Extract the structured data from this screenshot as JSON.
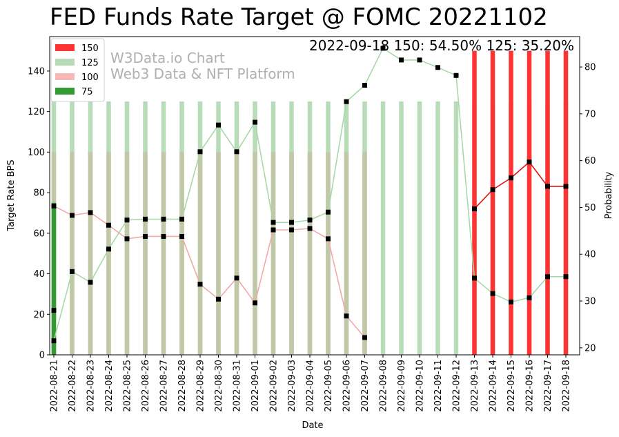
{
  "chart_data": {
    "type": "bar",
    "title": "FED Funds Rate Target @ FOMC 20221102",
    "annotation": "2022-09-18 150: 54.50% 125: 35.20%",
    "watermark": [
      "W3Data.io Chart",
      "Web3 Data & NFT Platform"
    ],
    "xlabel": "Date",
    "ylabel": "Target Rate BPS",
    "y2label": "Probability",
    "ylim": [
      0,
      157
    ],
    "y2lim": [
      18.5,
      86.5
    ],
    "yticks": [
      0,
      20,
      40,
      60,
      80,
      100,
      120,
      140
    ],
    "y2ticks": [
      20,
      30,
      40,
      50,
      60,
      70,
      80
    ],
    "categories": [
      "2022-08-21",
      "2022-08-22",
      "2022-08-23",
      "2022-08-24",
      "2022-08-25",
      "2022-08-26",
      "2022-08-27",
      "2022-08-28",
      "2022-08-29",
      "2022-08-30",
      "2022-08-31",
      "2022-09-01",
      "2022-09-02",
      "2022-09-03",
      "2022-09-04",
      "2022-09-05",
      "2022-09-06",
      "2022-09-07",
      "2022-09-08",
      "2022-09-09",
      "2022-09-10",
      "2022-09-11",
      "2022-09-12",
      "2022-09-13",
      "2022-09-14",
      "2022-09-15",
      "2022-09-16",
      "2022-09-17",
      "2022-09-18"
    ],
    "legend": [
      {
        "label": "150",
        "color": "#ff3333"
      },
      {
        "label": "125",
        "color": "#b8dcb8"
      },
      {
        "label": "100",
        "color": "#f8b8b8"
      },
      {
        "label": "75",
        "color": "#339933"
      }
    ],
    "bars": [
      {
        "name": "125",
        "value": 125,
        "color": "#b8dcb8",
        "from": 0,
        "to": 28
      },
      {
        "name": "100",
        "value": 100,
        "color": "#c0c8a8",
        "from": 0,
        "to": 17
      },
      {
        "name": "75",
        "value": 75,
        "color": "#339933",
        "from": 0,
        "to": 0
      },
      {
        "name": "150",
        "value": 150,
        "color": "#ff3333",
        "from": 23,
        "to": 28
      }
    ],
    "series": [
      {
        "name": "125",
        "color": "#a8d8a8",
        "values": [
          21.5,
          36.3,
          34.0,
          41.1,
          47.3,
          47.5,
          47.5,
          47.5,
          61.9,
          67.6,
          61.9,
          68.2,
          46.8,
          46.8,
          47.3,
          49.0,
          72.6,
          76.1,
          84.0,
          81.5,
          81.5,
          79.9,
          78.2,
          34.9,
          31.6,
          29.8,
          30.7,
          35.2,
          35.2
        ]
      },
      {
        "name": "100",
        "color": "#f4a8a8",
        "values": [
          50.3,
          48.3,
          48.9,
          46.2,
          43.3,
          43.8,
          43.8,
          43.8,
          33.6,
          30.4,
          34.9,
          29.6,
          45.2,
          45.2,
          45.5,
          43.3,
          26.8,
          22.2,
          null,
          null,
          null,
          null,
          null,
          null,
          null,
          null,
          null,
          null,
          null
        ]
      },
      {
        "name": "75",
        "color": "#339933",
        "values": [
          28.0,
          null,
          null,
          null,
          null,
          null,
          null,
          null,
          null,
          null,
          null,
          null,
          null,
          null,
          null,
          null,
          null,
          null,
          null,
          null,
          null,
          null,
          null,
          null,
          null,
          null,
          null,
          null,
          null
        ]
      },
      {
        "name": "150",
        "color": "#dd1111",
        "values": [
          null,
          null,
          null,
          null,
          null,
          null,
          null,
          null,
          null,
          null,
          null,
          null,
          null,
          null,
          null,
          null,
          null,
          null,
          null,
          null,
          null,
          null,
          null,
          49.7,
          53.8,
          56.3,
          59.7,
          54.5,
          54.5
        ]
      }
    ]
  }
}
